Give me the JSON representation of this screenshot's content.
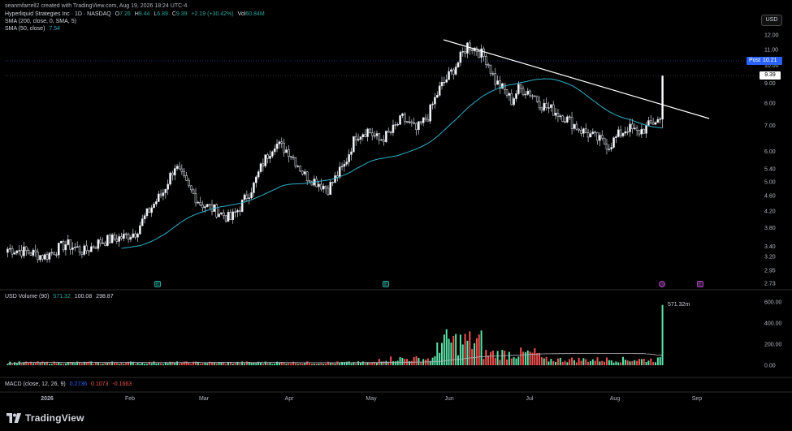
{
  "header": {
    "credit": "seanmfarrell2 created with TradingView.com, Aug 19, 2026 18:24 UTC-4",
    "symbol": "Hyperliquid Strategies Inc · 1D · NASDAQ",
    "ohlc": {
      "o_label": "O",
      "o": "7.26",
      "h_label": "H",
      "h": "9.44",
      "l_label": "L",
      "l": "6.89",
      "c_label": "C",
      "c": "9.39",
      "change": "+2.19 (+30.42%)",
      "vol_label": "Vol",
      "vol": "60.84M"
    },
    "sma200": "SMA (200, close, 0, SMA, 5)",
    "sma50_label": "SMA (50, close)",
    "sma50_value": "7.54"
  },
  "currency_button": "USD",
  "post_badge": {
    "label": "Post",
    "value": "10.21"
  },
  "last_price_badge": "9.39",
  "volume_pane": {
    "label": "USD Volume (90)",
    "v1": "571.32",
    "v2": "100.08",
    "v3": "298.87",
    "last_label": "571.32m",
    "ticks": [
      "600.00",
      "400.00",
      "200.00",
      "0.00"
    ]
  },
  "macd_pane": {
    "label": "MACD (close, 12, 26, 9)",
    "v1": "0.2736",
    "v2": "0.1073",
    "v3": "-0.1663"
  },
  "price_ticks": [
    "12.00",
    "11.00",
    "10.00",
    "9.00",
    "8.00",
    "7.00",
    "6.00",
    "5.40",
    "5.00",
    "4.60",
    "4.20",
    "3.80",
    "3.40",
    "3.20",
    "2.95",
    "2.73"
  ],
  "date_ticks": [
    "2026",
    "Feb",
    "Mar",
    "Apr",
    "May",
    "Jun",
    "Jul",
    "Aug",
    "Sep"
  ],
  "footer": {
    "brand": "TradingView"
  },
  "colors": {
    "up": "#ffffff",
    "down": "#000000",
    "sma50": "#2fb0c8",
    "volUp": "#5be3a7",
    "volDown": "#ef5350",
    "trendline": "#ffffff"
  },
  "event_icons": [
    "earnings-icon",
    "earnings-icon",
    "dividend-icon",
    "earnings-icon"
  ]
}
